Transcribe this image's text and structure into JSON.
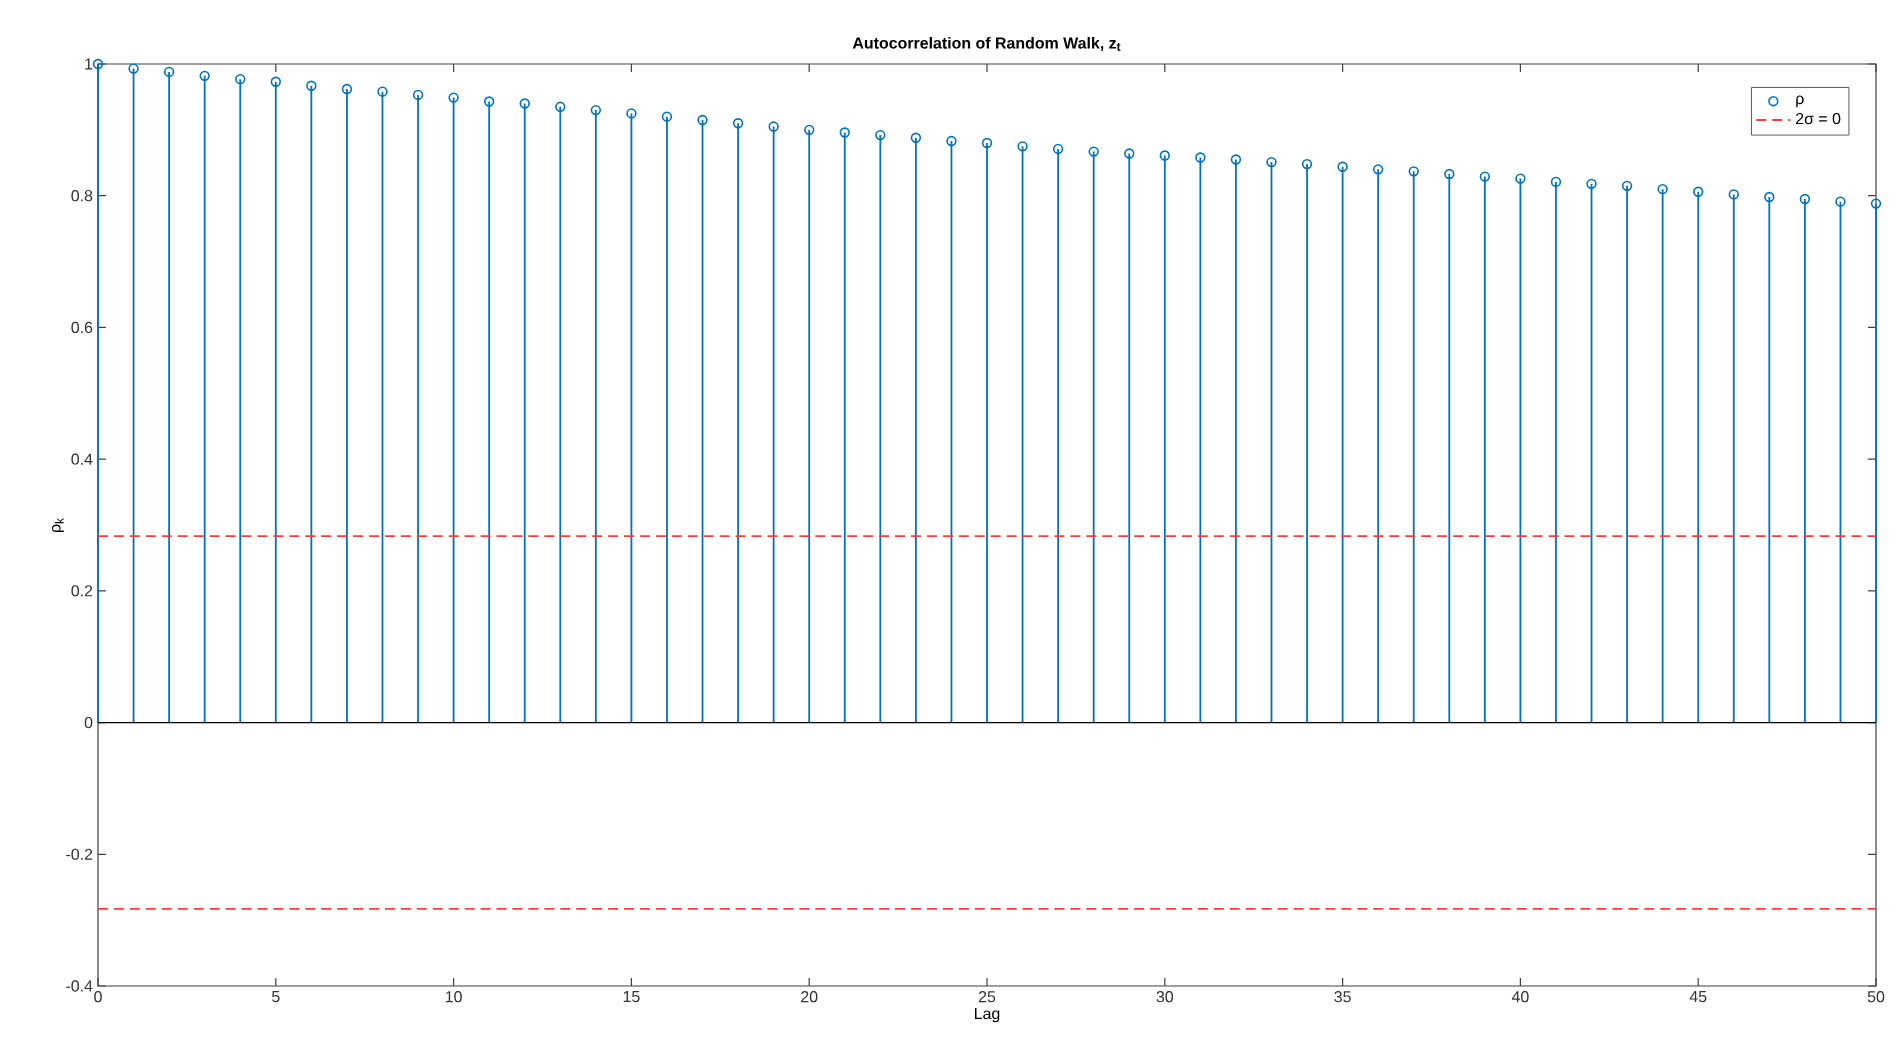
{
  "chart_data": {
    "type": "lollipop",
    "title": "Autocorrelation of Random Walk, z$_{t}$",
    "xlabel": "Lag",
    "ylabel": "ρ$_{k}$",
    "x": [
      0,
      1,
      2,
      3,
      4,
      5,
      6,
      7,
      8,
      9,
      10,
      11,
      12,
      13,
      14,
      15,
      16,
      17,
      18,
      19,
      20,
      21,
      22,
      23,
      24,
      25,
      26,
      27,
      28,
      29,
      30,
      31,
      32,
      33,
      34,
      35,
      36,
      37,
      38,
      39,
      40,
      41,
      42,
      43,
      44,
      45,
      46,
      47,
      48,
      49,
      50
    ],
    "series": [
      {
        "name": "ρ",
        "color": "#0072bd",
        "values": [
          1.0,
          0.993,
          0.988,
          0.982,
          0.977,
          0.973,
          0.967,
          0.962,
          0.958,
          0.953,
          0.949,
          0.943,
          0.94,
          0.935,
          0.93,
          0.925,
          0.92,
          0.915,
          0.91,
          0.905,
          0.9,
          0.896,
          0.892,
          0.888,
          0.883,
          0.88,
          0.875,
          0.871,
          0.867,
          0.864,
          0.861,
          0.858,
          0.855,
          0.851,
          0.848,
          0.844,
          0.84,
          0.837,
          0.833,
          0.829,
          0.826,
          0.821,
          0.818,
          0.815,
          0.81,
          0.806,
          0.802,
          0.798,
          0.795,
          0.791,
          0.788
        ]
      }
    ],
    "ref_lines": [
      {
        "axis": "y",
        "value": 0.283,
        "label": "2σ = 0",
        "color": "#ff3c3c",
        "line_style": "dashed"
      },
      {
        "axis": "y",
        "value": -0.283,
        "color": "#ff3c3c",
        "line_style": "dashed"
      }
    ],
    "xlim": [
      0,
      50
    ],
    "xticks": [
      0,
      5,
      10,
      15,
      20,
      25,
      30,
      35,
      40,
      45,
      50
    ],
    "ylim": [
      -0.4,
      1
    ],
    "yticks": [
      -0.4,
      -0.2,
      0,
      0.2,
      0.4,
      0.6,
      0.8,
      1
    ],
    "marker": "circle",
    "legend": "top right"
  }
}
